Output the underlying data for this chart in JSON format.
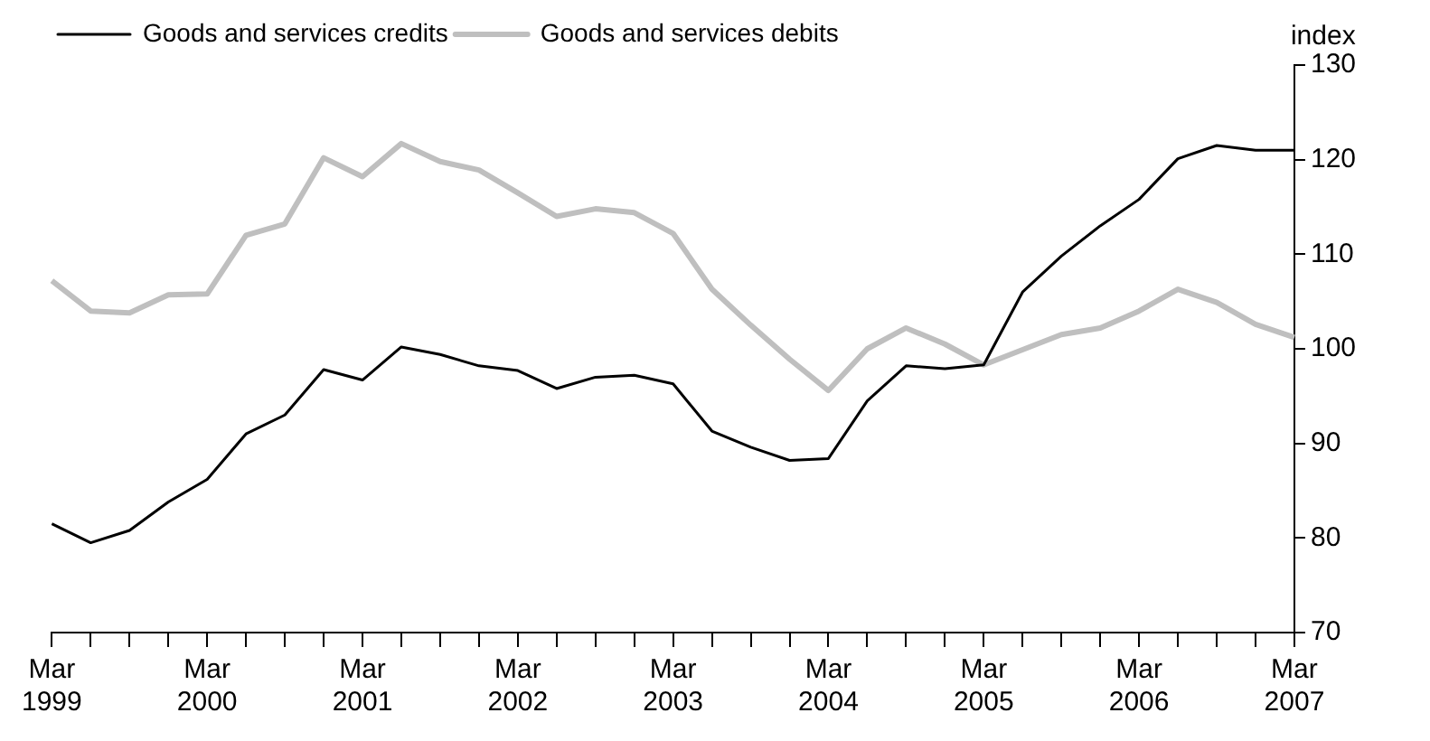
{
  "chart_data": {
    "type": "line",
    "ylabel": "index",
    "categories": [
      "Mar 1999",
      null,
      null,
      null,
      "Mar 2000",
      null,
      null,
      null,
      "Mar 2001",
      null,
      null,
      null,
      "Mar 2002",
      null,
      null,
      null,
      "Mar 2003",
      null,
      null,
      null,
      "Mar 2004",
      null,
      null,
      null,
      "Mar 2005",
      null,
      null,
      null,
      "Mar 2006",
      null,
      null,
      null,
      "Mar 2007"
    ],
    "series": [
      {
        "name": "Goods and services credits",
        "color": "#000000",
        "values": [
          81.5,
          79.5,
          80.8,
          83.8,
          86.2,
          91,
          93,
          97.8,
          96.7,
          100.2,
          99.4,
          98.2,
          97.7,
          95.8,
          97,
          97.2,
          96.3,
          91.3,
          89.6,
          88.2,
          88.4,
          94.5,
          98.2,
          97.9,
          98.3,
          106,
          109.8,
          113,
          115.8,
          120.1,
          121.5,
          121,
          121
        ]
      },
      {
        "name": "Goods and services debits",
        "color": "#bfbfbf",
        "values": [
          107.2,
          104,
          103.8,
          105.7,
          105.8,
          112,
          113.2,
          120.2,
          118.2,
          121.7,
          119.8,
          118.9,
          116.5,
          114,
          114.8,
          114.4,
          112.2,
          106.3,
          102.5,
          98.9,
          95.6,
          100,
          102.2,
          100.5,
          98.3,
          99.9,
          101.5,
          102.2,
          104,
          106.3,
          104.9,
          102.6,
          101.2
        ]
      }
    ],
    "ylim": [
      70,
      130
    ],
    "yticks": [
      70,
      80,
      90,
      100,
      110,
      120,
      130
    ],
    "grid": false,
    "legend": "top left",
    "marker": "none",
    "line_style": "solid"
  }
}
